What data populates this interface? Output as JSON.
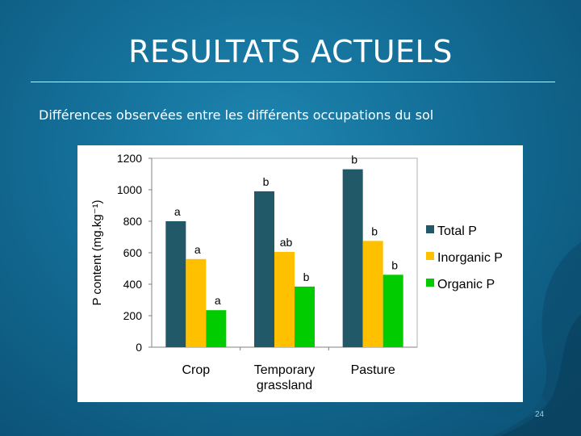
{
  "slide": {
    "title": "RESULTATS ACTUELS",
    "subtitle": "Différences observées entre les différents occupations du sol",
    "page_number": "24"
  },
  "chart_data": {
    "type": "bar",
    "title": "",
    "xlabel": "",
    "ylabel": "P content (mg.kg⁻¹)",
    "ylim": [
      0,
      1200
    ],
    "yticks": [
      0,
      200,
      400,
      600,
      800,
      1000,
      1200
    ],
    "categories": [
      [
        "Crop"
      ],
      [
        "Temporary",
        "grassland"
      ],
      [
        "Pasture"
      ]
    ],
    "series": [
      {
        "name": "Total P",
        "color": "#215968",
        "values": [
          800,
          990,
          1130
        ],
        "labels": [
          "a",
          "b",
          "b"
        ]
      },
      {
        "name": "Inorganic P",
        "color": "#ffc000",
        "values": [
          560,
          605,
          675
        ],
        "labels": [
          "a",
          "ab",
          "b"
        ]
      },
      {
        "name": "Organic P",
        "color": "#00cc00",
        "values": [
          235,
          385,
          460
        ],
        "labels": [
          "a",
          "b",
          "b"
        ]
      }
    ],
    "grid": false,
    "legend_position": "right"
  }
}
